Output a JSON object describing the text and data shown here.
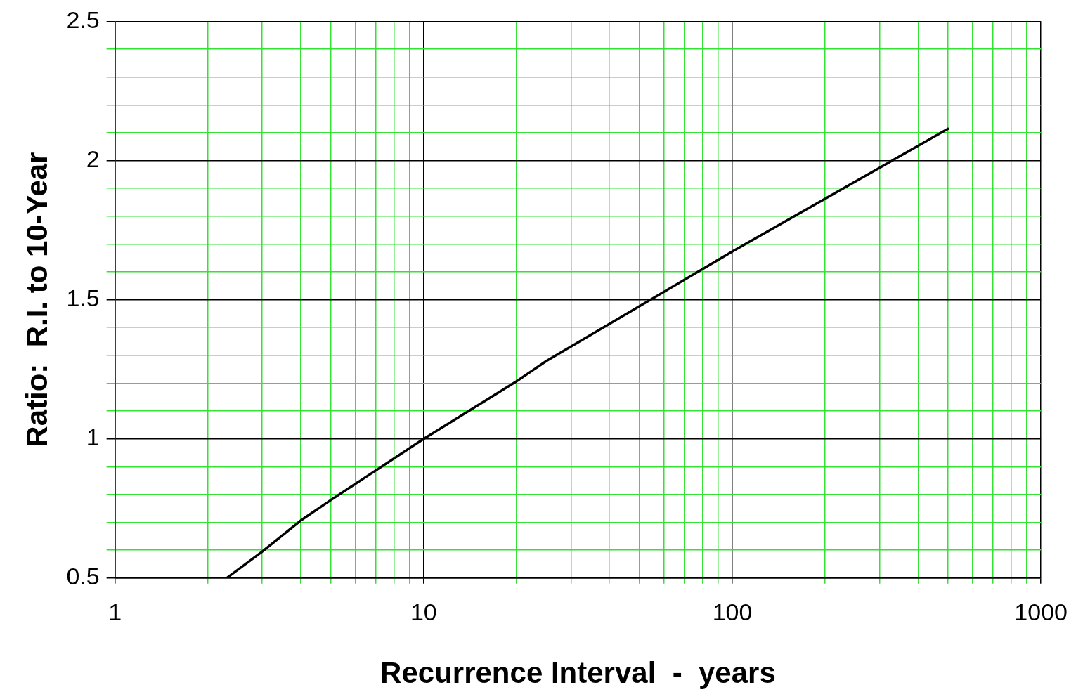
{
  "chart_data": {
    "type": "line",
    "xlabel": "Recurrence Interval  -  years",
    "ylabel": "Ratio:  R.I. to 10-Year",
    "x": [
      2.3,
      3,
      4,
      5,
      10,
      20,
      25,
      100,
      500
    ],
    "series": [
      {
        "color": "#000000",
        "values": [
          0.5,
          0.595,
          0.707,
          0.78,
          1.0,
          1.207,
          1.28,
          1.673,
          2.114
        ]
      }
    ],
    "log": "x",
    "xlim": [
      1,
      1000
    ],
    "xticks": [
      1,
      {
        "value": 2,
        "label": null
      },
      {
        "value": 3,
        "label": null
      },
      {
        "value": 4,
        "label": null
      },
      {
        "value": 5,
        "label": null
      },
      {
        "value": 6,
        "label": null
      },
      {
        "value": 7,
        "label": null
      },
      {
        "value": 8,
        "label": null
      },
      {
        "value": 9,
        "label": null
      },
      10,
      {
        "value": 20,
        "label": null
      },
      {
        "value": 30,
        "label": null
      },
      {
        "value": 40,
        "label": null
      },
      {
        "value": 50,
        "label": null
      },
      {
        "value": 60,
        "label": null
      },
      {
        "value": 70,
        "label": null
      },
      {
        "value": 80,
        "label": null
      },
      {
        "value": 90,
        "label": null
      },
      100,
      {
        "value": 200,
        "label": null
      },
      {
        "value": 300,
        "label": null
      },
      {
        "value": 400,
        "label": null
      },
      {
        "value": 500,
        "label": null
      },
      {
        "value": 600,
        "label": null
      },
      {
        "value": 700,
        "label": null
      },
      {
        "value": 800,
        "label": null
      },
      {
        "value": 900,
        "label": null
      },
      1000
    ],
    "ylim": [
      0.5,
      2.5
    ],
    "yticks": [
      0.5,
      {
        "value": 0.6,
        "label": null
      },
      {
        "value": 0.7,
        "label": null
      },
      {
        "value": 0.8,
        "label": null
      },
      {
        "value": 0.9,
        "label": null
      },
      1,
      {
        "value": 1.1,
        "label": null
      },
      {
        "value": 1.2,
        "label": null
      },
      {
        "value": 1.3,
        "label": null
      },
      {
        "value": 1.4,
        "label": null
      },
      1.5,
      {
        "value": 1.6,
        "label": null
      },
      {
        "value": 1.7,
        "label": null
      },
      {
        "value": 1.8,
        "label": null
      },
      {
        "value": 1.9,
        "label": null
      },
      2,
      {
        "value": 2.1,
        "label": null
      },
      {
        "value": 2.2,
        "label": null
      },
      {
        "value": 2.3,
        "label": null
      },
      {
        "value": 2.4,
        "label": null
      },
      2.5
    ],
    "grid": true,
    "legend": false,
    "marker": "none",
    "line_style": "solid"
  }
}
